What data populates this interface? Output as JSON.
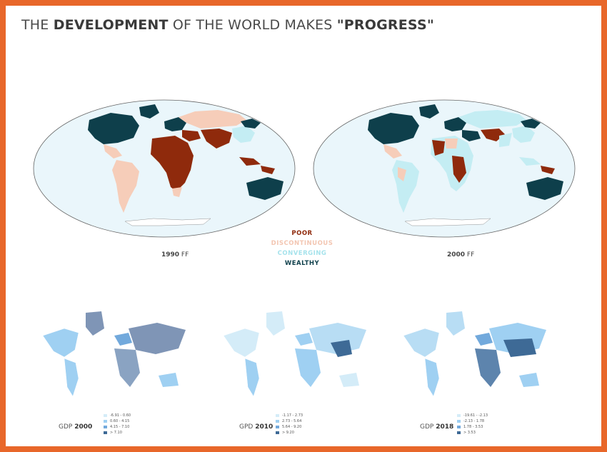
{
  "title": {
    "pre": "THE ",
    "bold1": "DEVELOPMENT",
    "mid": " OF THE WORLD MAKES ",
    "bold2": "\"PROGRESS\""
  },
  "maps": [
    {
      "year": "1990",
      "suffix": " FF"
    },
    {
      "year": "2000",
      "suffix": " FF"
    }
  ],
  "legend": [
    {
      "label": "POOR",
      "color": "#8f2a0c"
    },
    {
      "label": "DISCONTINUOUS",
      "color": "#f3c6b2"
    },
    {
      "label": "CONVERGING",
      "color": "#a6e3ec"
    },
    {
      "label": "WEALTHY",
      "color": "#0e3f4b"
    }
  ],
  "colors": {
    "ocean": "#eaf6fb",
    "poor": "#8f2a0c",
    "discontinuous": "#f6cdb9",
    "converging": "#c4edf3",
    "wealthy": "#0e3f4b",
    "frame": "#e8672a"
  },
  "gdp_maps": [
    {
      "prefix": "GDP ",
      "year": "2000",
      "ranges": [
        "-6.91 - 0.60",
        "0.60 - 4.15",
        "4.15 - 7.10",
        "> 7.10"
      ]
    },
    {
      "prefix": "GPD ",
      "year": "2010",
      "ranges": [
        "-1.17 - 2.73",
        "2.73 - 5.64",
        "5.64 - 9.20",
        "> 9.20"
      ]
    },
    {
      "prefix": "GDP ",
      "year": "2018",
      "ranges": [
        "-19.61 - -2.13",
        "-2.13 - 1.78",
        "1.78 - 3.53",
        "> 3.53"
      ]
    }
  ],
  "gdp_colors": [
    "#d4ecf8",
    "#9fd0f2",
    "#72a9dc",
    "#3e6a96"
  ]
}
